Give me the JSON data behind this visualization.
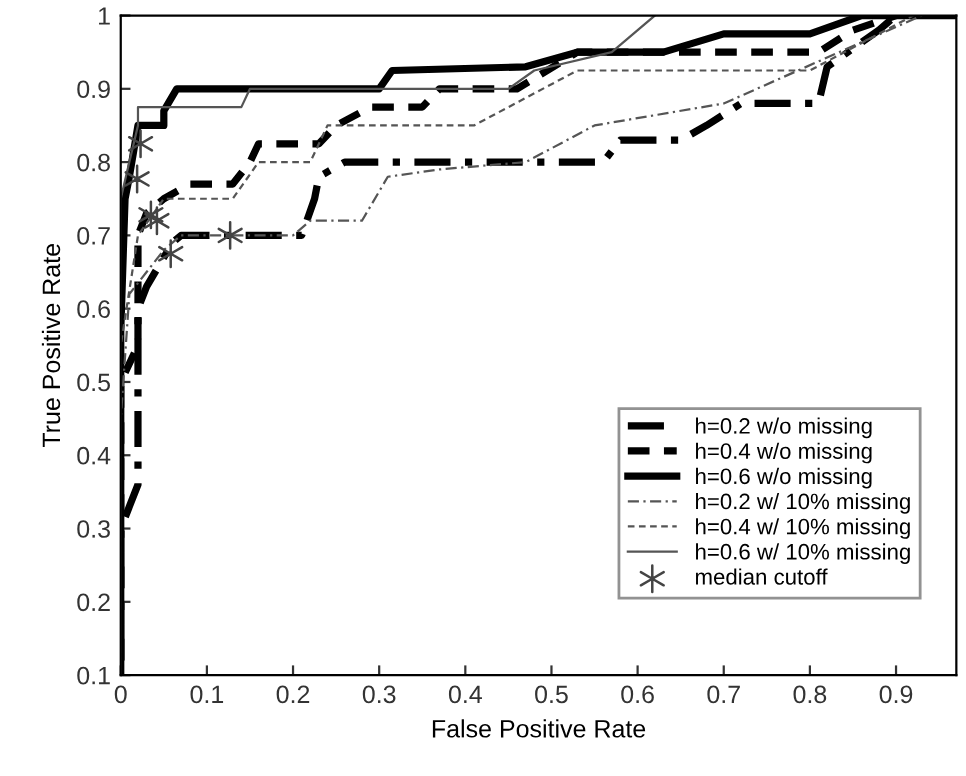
{
  "chart_data": {
    "type": "line",
    "xlabel": "False Positive Rate",
    "ylabel": "True Positive Rate",
    "xlim": [
      0,
      0.97
    ],
    "ylim": [
      0.1,
      1
    ],
    "xticks": [
      0,
      0.1,
      0.2,
      0.3,
      0.4,
      0.5,
      0.6,
      0.7,
      0.8,
      0.9
    ],
    "yticks": [
      0.1,
      0.2,
      0.3,
      0.4,
      0.5,
      0.6,
      0.7,
      0.8,
      0.9,
      1
    ],
    "grid": false,
    "legend": "lower right",
    "series": [
      {
        "name": "h=0.2 w/o missing",
        "color": "#000000",
        "line_style": "dashdot",
        "x": [
          0,
          0,
          0.01,
          0.02,
          0.02,
          0.03,
          0.045,
          0.06,
          0.07,
          0.21,
          0.225,
          0.23,
          0.26,
          0.56,
          0.58,
          0.65,
          0.68,
          0.72,
          0.81,
          0.82,
          0.88,
          0.9
        ],
        "values": [
          0.12,
          0.3,
          0.33,
          0.36,
          0.6,
          0.63,
          0.66,
          0.69,
          0.7,
          0.7,
          0.75,
          0.78,
          0.8,
          0.8,
          0.83,
          0.83,
          0.85,
          0.88,
          0.88,
          0.93,
          0.98,
          1
        ]
      },
      {
        "name": "h=0.4 w/o missing",
        "color": "#000000",
        "line_style": "dashed",
        "x": [
          0,
          0,
          0.02,
          0.02,
          0.03,
          0.05,
          0.08,
          0.13,
          0.15,
          0.16,
          0.23,
          0.25,
          0.29,
          0.35,
          0.37,
          0.46,
          0.53,
          0.81,
          0.85,
          0.9
        ],
        "values": [
          0.12,
          0.5,
          0.55,
          0.7,
          0.73,
          0.75,
          0.77,
          0.77,
          0.8,
          0.825,
          0.825,
          0.85,
          0.875,
          0.875,
          0.9,
          0.9,
          0.95,
          0.95,
          0.98,
          1
        ]
      },
      {
        "name": "h=0.6 w/o missing",
        "color": "#000000",
        "line_style": "solid",
        "x": [
          0,
          0,
          0.005,
          0.01,
          0.02,
          0.05,
          0.05,
          0.065,
          0.3,
          0.315,
          0.47,
          0.53,
          0.63,
          0.7,
          0.8,
          0.86,
          0.97
        ],
        "values": [
          0.1,
          0.57,
          0.75,
          0.78,
          0.85,
          0.85,
          0.87,
          0.9,
          0.9,
          0.925,
          0.93,
          0.95,
          0.95,
          0.975,
          0.975,
          1,
          1
        ]
      },
      {
        "name": "h=0.2 w/ 10% missing",
        "color": "#555555",
        "line_style": "dashdot",
        "x": [
          0,
          0,
          0.01,
          0.03,
          0.05,
          0.07,
          0.2,
          0.22,
          0.28,
          0.31,
          0.37,
          0.47,
          0.55,
          0.7,
          0.93
        ],
        "values": [
          0.1,
          0.45,
          0.62,
          0.65,
          0.68,
          0.7,
          0.7,
          0.72,
          0.72,
          0.78,
          0.79,
          0.8,
          0.85,
          0.88,
          1
        ]
      },
      {
        "name": "h=0.4 w/ 10% missing",
        "color": "#555555",
        "line_style": "dashed",
        "x": [
          0,
          0,
          0.02,
          0.05,
          0.13,
          0.16,
          0.22,
          0.24,
          0.41,
          0.53,
          0.8,
          0.92
        ],
        "values": [
          0.1,
          0.55,
          0.7,
          0.75,
          0.75,
          0.8,
          0.8,
          0.85,
          0.85,
          0.925,
          0.925,
          1
        ]
      },
      {
        "name": "h=0.6 w/ 10% missing",
        "color": "#555555",
        "line_style": "solid",
        "x": [
          0,
          0,
          0.01,
          0.02,
          0.02,
          0.14,
          0.15,
          0.45,
          0.48,
          0.57,
          0.62
        ],
        "values": [
          0.1,
          0.75,
          0.8,
          0.85,
          0.875,
          0.875,
          0.9,
          0.9,
          0.925,
          0.95,
          1
        ]
      },
      {
        "name": "median cutoff",
        "type": "scatter",
        "marker": "cross",
        "color": "#444444",
        "x": [
          0.023,
          0.019,
          0.035,
          0.042,
          0.058,
          0.127
        ],
        "values": [
          0.825,
          0.777,
          0.728,
          0.72,
          0.675,
          0.7
        ]
      }
    ]
  }
}
